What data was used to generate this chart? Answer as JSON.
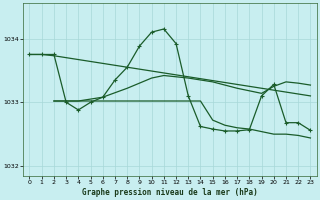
{
  "title": "Graphe pression niveau de la mer (hPa)",
  "background_color": "#c8eef0",
  "grid_color": "#a8d8d8",
  "line_color": "#1a5c2a",
  "xlim": [
    -0.5,
    23.5
  ],
  "ylim": [
    1031.85,
    1034.55
  ],
  "yticks": [
    1032,
    1033,
    1034
  ],
  "xticks": [
    0,
    1,
    2,
    3,
    4,
    5,
    6,
    7,
    8,
    9,
    10,
    11,
    12,
    13,
    14,
    15,
    16,
    17,
    18,
    19,
    20,
    21,
    22,
    23
  ],
  "series1_x": [
    0,
    1,
    2,
    3,
    4,
    5,
    6,
    7,
    8,
    9,
    10,
    11,
    12,
    13,
    14,
    15,
    16,
    17,
    18,
    19,
    20,
    21,
    22,
    23
  ],
  "series1_y": [
    1033.75,
    1033.75,
    1033.73,
    1033.7,
    1033.67,
    1033.64,
    1033.61,
    1033.58,
    1033.55,
    1033.52,
    1033.49,
    1033.46,
    1033.43,
    1033.4,
    1033.37,
    1033.34,
    1033.31,
    1033.28,
    1033.25,
    1033.22,
    1033.19,
    1033.16,
    1033.13,
    1033.1
  ],
  "series2_x": [
    0,
    1,
    2,
    3,
    4,
    5,
    6,
    7,
    8,
    9,
    10,
    11,
    12,
    13,
    14,
    15,
    16,
    17,
    18,
    19,
    20,
    21,
    22,
    23
  ],
  "series2_y": [
    1033.75,
    1033.75,
    1033.75,
    1033.0,
    1032.88,
    1033.0,
    1033.08,
    1033.35,
    1033.55,
    1033.88,
    1034.1,
    1034.15,
    1033.92,
    1033.1,
    1032.62,
    1032.58,
    1032.55,
    1032.55,
    1032.57,
    1033.1,
    1033.28,
    1032.68,
    1032.68,
    1032.56
  ],
  "series3_x": [
    2,
    3,
    4,
    5,
    6,
    7,
    8,
    9,
    10,
    11,
    12,
    13,
    14,
    15,
    16,
    17,
    18,
    19,
    20,
    21,
    22,
    23
  ],
  "series3_y": [
    1033.02,
    1033.02,
    1033.02,
    1033.05,
    1033.08,
    1033.15,
    1033.22,
    1033.3,
    1033.38,
    1033.42,
    1033.4,
    1033.38,
    1033.35,
    1033.32,
    1033.27,
    1033.22,
    1033.18,
    1033.14,
    1033.25,
    1033.32,
    1033.3,
    1033.27
  ],
  "series4_x": [
    2,
    3,
    4,
    5,
    6,
    7,
    8,
    9,
    10,
    11,
    12,
    13,
    14,
    15,
    16,
    17,
    18,
    19,
    20,
    21,
    22,
    23
  ],
  "series4_y": [
    1033.02,
    1033.02,
    1033.02,
    1033.02,
    1033.02,
    1033.02,
    1033.02,
    1033.02,
    1033.02,
    1033.02,
    1033.02,
    1033.02,
    1033.02,
    1032.72,
    1032.64,
    1032.6,
    1032.58,
    1032.54,
    1032.5,
    1032.5,
    1032.48,
    1032.44
  ]
}
